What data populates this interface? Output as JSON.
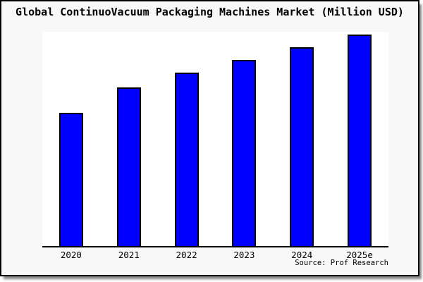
{
  "page": {
    "title": "Global ContinuoVacuum Packaging Machines Market (Million USD)",
    "source_note": "Source: Prof Research"
  },
  "chart_data": {
    "type": "bar",
    "title": "Global ContinuoVacuum Packaging Machines Market (Million USD)",
    "categories": [
      "2020",
      "2021",
      "2022",
      "2023",
      "2024",
      "2025e"
    ],
    "values": [
      63,
      75,
      82,
      88,
      94,
      100
    ],
    "values_note": "y-axis has no tick labels; values estimated from bar heights as relative index with 2025e = 100",
    "ylim": [
      0,
      102
    ],
    "xlabel": "",
    "ylabel": "",
    "grid": false,
    "legend": null,
    "source": "Source: Prof Research",
    "series_color": "#0000ff"
  },
  "colors": {
    "background": "#f8f8f8",
    "plot_background": "#ffffff",
    "bar_fill": "#0000ff",
    "bar_border": "#000000",
    "axis_line": "#000000",
    "frame_border": "#000000",
    "text": "#000000"
  }
}
